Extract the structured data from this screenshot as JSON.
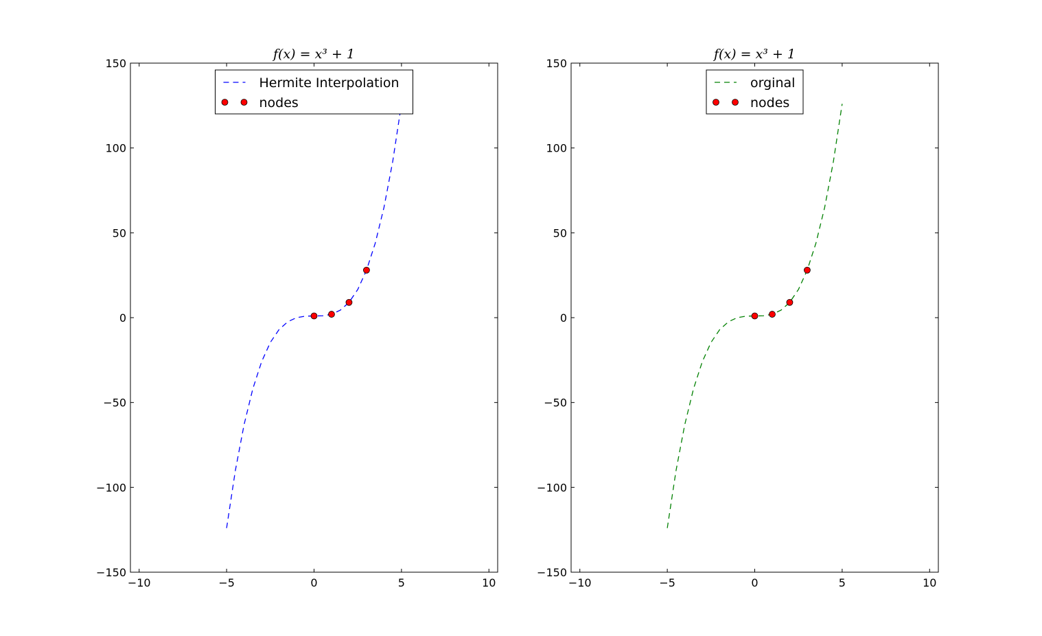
{
  "chart_data": [
    {
      "type": "line",
      "title": "f(x) = x³ + 1",
      "xlim": [
        -10.5,
        10.5
      ],
      "ylim": [
        -150,
        150
      ],
      "x_ticks": [
        "−10",
        "−5",
        "0",
        "5",
        "10"
      ],
      "x_tick_values": [
        -10,
        -5,
        0,
        5,
        10
      ],
      "y_ticks": [
        "150",
        "100",
        "50",
        "0",
        "−50",
        "−100",
        "−150"
      ],
      "y_tick_values": [
        150,
        100,
        50,
        0,
        -50,
        -100,
        -150
      ],
      "legend_position": "upper center",
      "series": [
        {
          "name": "Hermite Interpolation",
          "style": "dashed",
          "color": "#0000ff",
          "x": [
            -5,
            -4.5,
            -4,
            -3.5,
            -3,
            -2.5,
            -2,
            -1.5,
            -1,
            -0.5,
            0,
            0.5,
            1,
            1.5,
            2,
            2.5,
            3,
            3.5,
            4,
            4.5,
            5
          ],
          "y": [
            -124,
            -90.1,
            -63,
            -41.9,
            -26,
            -14.6,
            -7,
            -2.4,
            0,
            0.9,
            1,
            1.1,
            2,
            4.4,
            9,
            16.6,
            28,
            43.9,
            65,
            92.1,
            126
          ]
        },
        {
          "name": "nodes",
          "style": "markers",
          "color": "#ff0000",
          "x": [
            0,
            1,
            2,
            3
          ],
          "y": [
            1,
            2,
            9,
            28
          ]
        }
      ]
    },
    {
      "type": "line",
      "title": "f(x) = x³ + 1",
      "xlim": [
        -10.5,
        10.5
      ],
      "ylim": [
        -150,
        150
      ],
      "x_ticks": [
        "−10",
        "−5",
        "0",
        "5",
        "10"
      ],
      "x_tick_values": [
        -10,
        -5,
        0,
        5,
        10
      ],
      "y_ticks": [
        "150",
        "100",
        "50",
        "0",
        "−50",
        "−100",
        "−150"
      ],
      "y_tick_values": [
        150,
        100,
        50,
        0,
        -50,
        -100,
        -150
      ],
      "legend_position": "upper center",
      "series": [
        {
          "name": "orginal",
          "style": "dashed",
          "color": "#008000",
          "x": [
            -5,
            -4.5,
            -4,
            -3.5,
            -3,
            -2.5,
            -2,
            -1.5,
            -1,
            -0.5,
            0,
            0.5,
            1,
            1.5,
            2,
            2.5,
            3,
            3.5,
            4,
            4.5,
            5
          ],
          "y": [
            -124,
            -90.1,
            -63,
            -41.9,
            -26,
            -14.6,
            -7,
            -2.4,
            0,
            0.9,
            1,
            1.1,
            2,
            4.4,
            9,
            16.6,
            28,
            43.9,
            65,
            92.1,
            126
          ]
        },
        {
          "name": "nodes",
          "style": "markers",
          "color": "#ff0000",
          "x": [
            0,
            1,
            2,
            3
          ],
          "y": [
            1,
            2,
            9,
            28
          ]
        }
      ]
    }
  ]
}
